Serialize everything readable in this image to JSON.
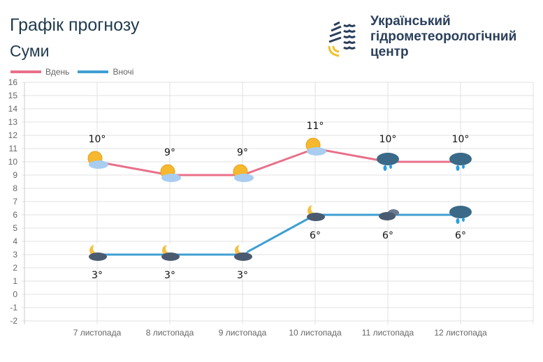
{
  "header": {
    "title": "Графік прогнозу",
    "city": "Суми",
    "org_lines": [
      "Український",
      "гідрометеорологічний",
      "центр"
    ]
  },
  "colors": {
    "day": "#e8708a",
    "night": "#3f9fd3",
    "grid": "#e0e0e0",
    "text": "#666"
  },
  "chart_data": {
    "type": "line",
    "categories": [
      "7 листопада",
      "8 листопада",
      "9 листопада",
      "10 листопада",
      "11 листопада",
      "12 листопада"
    ],
    "ylim": [
      -2,
      16
    ],
    "yticks": [
      16,
      15,
      14,
      13,
      12,
      11,
      10,
      9,
      8,
      7,
      6,
      5,
      4,
      3,
      2,
      1,
      0,
      -1,
      -2
    ],
    "grid": true,
    "legend": "top-left",
    "series": [
      {
        "name": "Вдень",
        "values": [
          10,
          9,
          9,
          11,
          10,
          10
        ],
        "labels": [
          "10°",
          "9°",
          "9°",
          "11°",
          "10°",
          "10°"
        ],
        "icons": [
          "sun-cloud",
          "sun-cloud",
          "sun-cloud",
          "sun-cloud",
          "rain-cloud",
          "rain-cloud"
        ]
      },
      {
        "name": "Вночі",
        "values": [
          3,
          3,
          3,
          6,
          6,
          6
        ],
        "labels": [
          "3°",
          "3°",
          "3°",
          "6°",
          "6°",
          "6°"
        ],
        "icons": [
          "moon-cloud",
          "moon-cloud",
          "moon-cloud",
          "moon-cloud",
          "dark-clouds",
          "rain-cloud"
        ]
      }
    ]
  }
}
